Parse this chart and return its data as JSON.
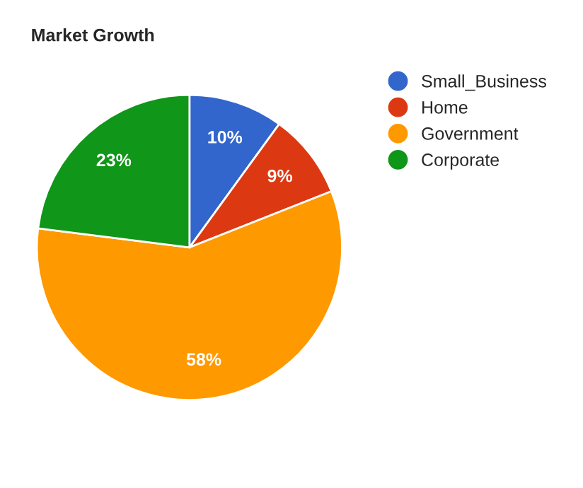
{
  "chart_data": {
    "type": "pie",
    "title": "Market Growth",
    "categories": [
      "Small_Business",
      "Home",
      "Government",
      "Corporate"
    ],
    "values": [
      10,
      9,
      58,
      23
    ],
    "colors": [
      "#3366cc",
      "#dc3912",
      "#ff9900",
      "#109618"
    ],
    "value_labels": [
      "10%",
      "9%",
      "58%",
      "23%"
    ],
    "legend": "right"
  }
}
